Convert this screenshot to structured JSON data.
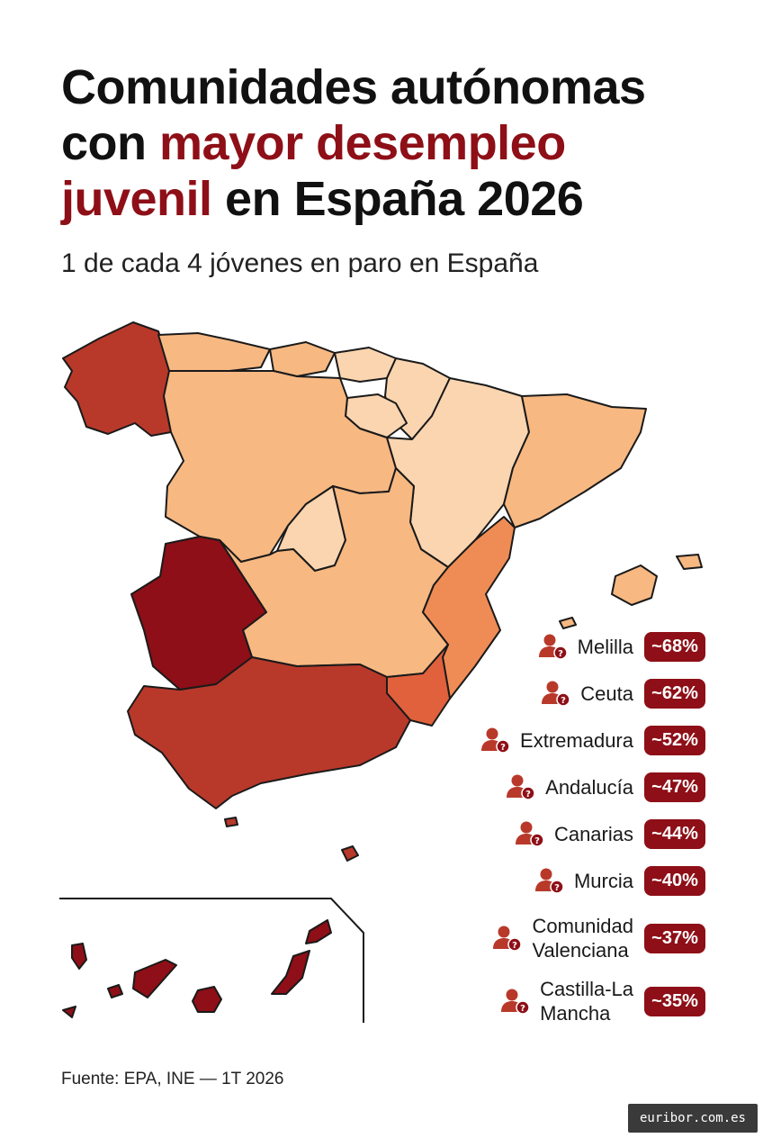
{
  "title": {
    "part1": "Comunidades autónomas",
    "part2": "con ",
    "accent1": "mayor desempleo",
    "accent2": "juvenil",
    "part3": " en España 2026"
  },
  "subtitle": "1 de cada 4 jóvenes en paro en España",
  "colors": {
    "accent": "#8e0f17",
    "scale": [
      "#fad5b0",
      "#f7b882",
      "#ef8c55",
      "#e0613c",
      "#b8392a",
      "#8e0f17"
    ]
  },
  "legend": [
    {
      "name": "Melilla",
      "value": "~68%",
      "icon": "user-question-icon"
    },
    {
      "name": "Ceuta",
      "value": "~62%",
      "icon": "user-question-icon"
    },
    {
      "name": "Extremadura",
      "value": "~52%",
      "icon": "user-question-icon"
    },
    {
      "name": "Andalucía",
      "value": "~47%",
      "icon": "user-question-icon"
    },
    {
      "name": "Canarias",
      "value": "~44%",
      "icon": "user-question-icon"
    },
    {
      "name": "Murcia",
      "value": "~40%",
      "icon": "user-question-icon"
    },
    {
      "name": "Comunidad\nValenciana",
      "value": "~37%",
      "icon": "user-question-icon"
    },
    {
      "name": "Castilla-La\nMancha",
      "value": "~35%",
      "icon": "user-question-icon"
    }
  ],
  "source": "Fuente: EPA, INE — 1T 2026",
  "brand": "euribor.com.es"
}
